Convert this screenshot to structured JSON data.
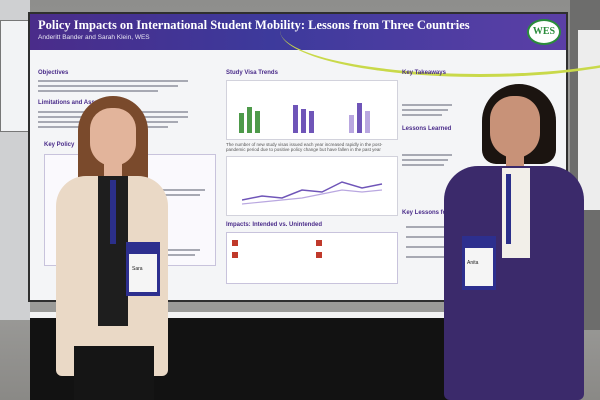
{
  "poster": {
    "title": "Policy Impacts on International Student Mobility: Lessons from Three Countries",
    "authors": "Anderitt Bander and Sarah Klein, WES",
    "logo": "WES",
    "sections": {
      "objectives": "Objectives",
      "limitations": "Limitations and Assumptions",
      "key_policy": "Key Policy",
      "study_visa_trends": "Study Visa Trends",
      "impacts": "Impacts: Intended vs. Unintended",
      "key_takeaways": "Key Takeaways",
      "lessons_learned": "Lessons Learned",
      "key_lessons": "Key Lessons for the Univ"
    },
    "chart_caption": "The number of new study visas issued each year increased rapidly in the post-pandemic period due to positive policy change but have fallen in the past year",
    "colors": {
      "banner": "#4a2c8a",
      "accent_green": "#2a8c3b",
      "bar_purple": "#6f55b8",
      "bar_green": "#4e9a4a"
    }
  },
  "badges": {
    "left": "Sara",
    "right": "Anita"
  }
}
